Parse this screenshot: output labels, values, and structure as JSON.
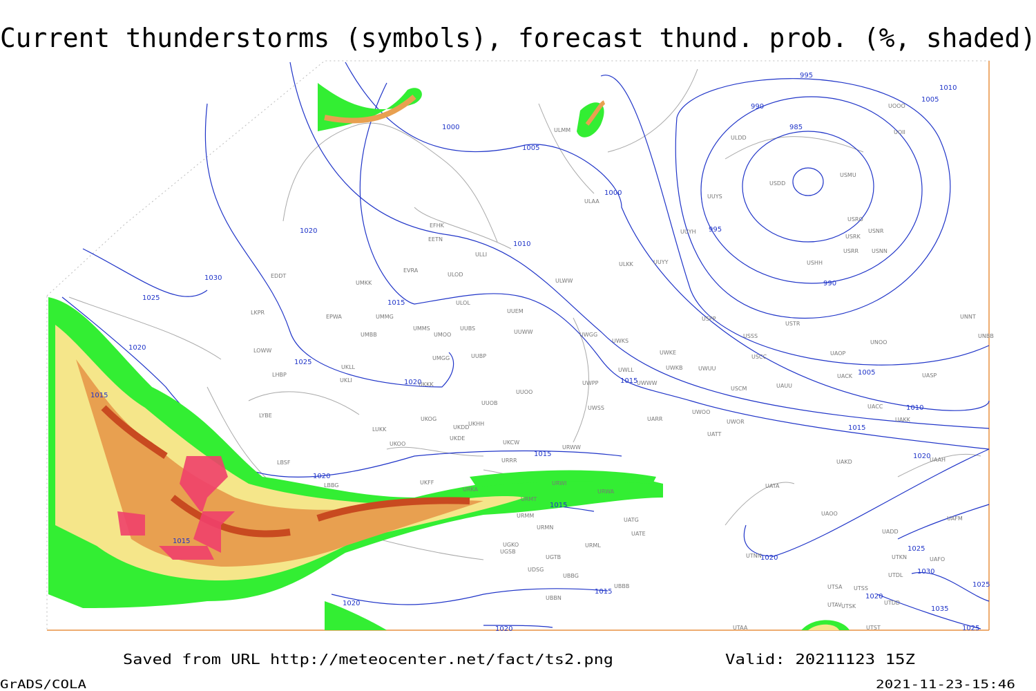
{
  "title": "Current thunderstorms (symbols), forecast thund. prob. (%, shaded)",
  "footer": {
    "source": "Saved from URL http://meteocenter.net/fact/ts2.png",
    "valid": "Valid: 20211123 15Z",
    "software": "GrADS/COLA",
    "timestamp": "2021-11-23-15:46"
  },
  "isobar_labels": [
    "1000",
    "1005",
    "1000",
    "995",
    "990",
    "985",
    "995",
    "990",
    "1010",
    "1005",
    "1010",
    "1020",
    "1030",
    "1025",
    "1020",
    "1015",
    "1025",
    "1020",
    "1015",
    "1005",
    "1010",
    "1015",
    "1020",
    "1015",
    "1020",
    "1015",
    "1015",
    "1015",
    "1020",
    "1025",
    "1030",
    "1025",
    "1020",
    "1035",
    "1025",
    "1015",
    "1020",
    "1020"
  ],
  "station_labels": [
    "EFHK",
    "EETN",
    "EVRA",
    "ULOD",
    "UMKK",
    "ULLI",
    "ULOL",
    "UUEM",
    "UMMG",
    "EPWA",
    "EDDT",
    "LKPR",
    "UMMS",
    "UMOO",
    "UUBS",
    "UUWW",
    "UMBB",
    "LOWW",
    "UMGG",
    "UUBP",
    "UKLL",
    "UKLI",
    "LHBP",
    "UKKK",
    "UUOO",
    "UUOB",
    "LYBE",
    "UKHH",
    "UKOG",
    "UKDD",
    "LUKK",
    "UKDE",
    "UKOO",
    "UKCW",
    "URRR",
    "LBSF",
    "URWW",
    "UKFF",
    "LBBG",
    "URKA",
    "URWI",
    "URMT",
    "URWA",
    "URMM",
    "URMN",
    "UGKO",
    "UGSB",
    "UGTB",
    "UDSG",
    "UBBG",
    "UBBB",
    "UBBN",
    "URML",
    "UATE",
    "UATG",
    "ULMM",
    "ULAA",
    "ULDD",
    "USDD",
    "USMU",
    "UUYY",
    "UUYH",
    "UUYS",
    "ULKK",
    "ULWW",
    "UWGG",
    "UWKS",
    "UWKE",
    "UWLL",
    "UWWW",
    "UWKB",
    "UWUU",
    "UWPP",
    "UWSS",
    "UWOO",
    "UWOR",
    "UARR",
    "UATT",
    "USPP",
    "USTR",
    "USSS",
    "USCC",
    "USCM",
    "UAUU",
    "UNOO",
    "UAOP",
    "UACK",
    "UASP",
    "UACC",
    "UAKK",
    "UAKD",
    "UAAH",
    "UATA",
    "UAOO",
    "UNNT",
    "UNBB",
    "USHH",
    "USRR",
    "USNN",
    "USRK",
    "USNR",
    "USRO",
    "UOOO",
    "UOII",
    "UTNN",
    "UTSA",
    "UTSS",
    "UTAV",
    "UTSK",
    "UTST",
    "UTAA",
    "UTDL",
    "UTDD",
    "UTKN",
    "UADD",
    "UAFM",
    "UAFO"
  ]
}
